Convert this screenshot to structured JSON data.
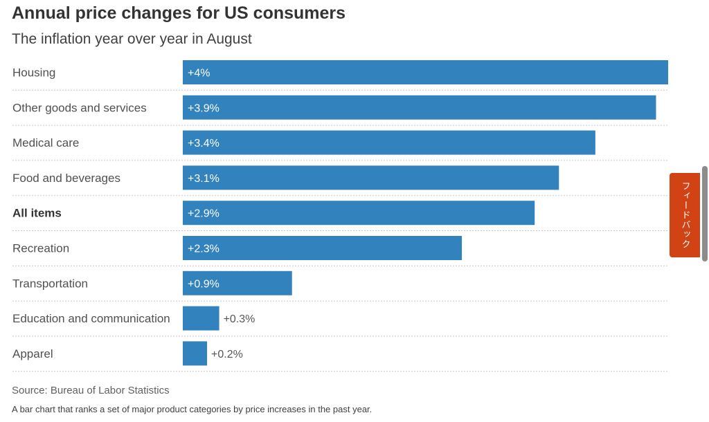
{
  "chart_data": {
    "type": "bar",
    "orientation": "horizontal",
    "title": "Annual price changes for US consumers",
    "subtitle": "The inflation year over year in August",
    "categories": [
      "Housing",
      "Other goods and services",
      "Medical care",
      "Food and beverages",
      "All items",
      "Recreation",
      "Transportation",
      "Education and communication",
      "Apparel"
    ],
    "values": [
      4.0,
      3.9,
      3.4,
      3.1,
      2.9,
      2.3,
      0.9,
      0.3,
      0.2
    ],
    "value_labels": [
      "+4%",
      "+3.9%",
      "+3.4%",
      "+3.1%",
      "+2.9%",
      "+2.3%",
      "+0.9%",
      "+0.3%",
      "+0.2%"
    ],
    "highlighted_category": "All items",
    "xlim": [
      0,
      4.0
    ],
    "grid": false,
    "bar_color": "#3182bd"
  },
  "source": "Source: Bureau of Labor Statistics",
  "description": "A bar chart that ranks a set of major product categories by price increases in the past year.",
  "feedback_label": "フィードバック"
}
